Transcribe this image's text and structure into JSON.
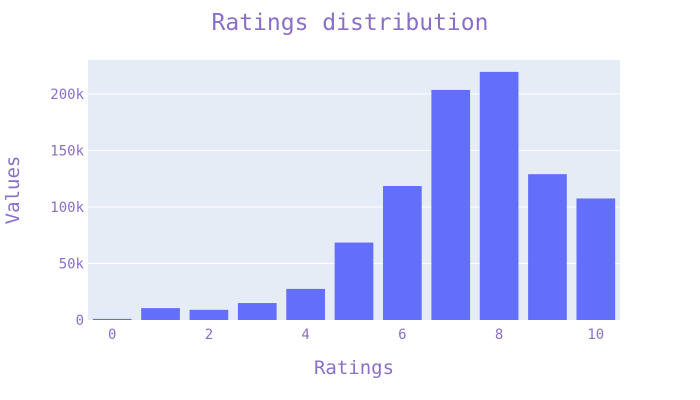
{
  "chart_data": {
    "type": "bar",
    "title": "Ratings distribution",
    "xlabel": "Ratings",
    "ylabel": "Values",
    "x": [
      0,
      1,
      2,
      3,
      4,
      5,
      6,
      7,
      8,
      9,
      10
    ],
    "values": [
      1000,
      10500,
      9000,
      15000,
      27500,
      68500,
      118500,
      203500,
      219500,
      129000,
      107500
    ],
    "xlim": [
      -0.5,
      10.5
    ],
    "ylim": [
      0,
      230000
    ],
    "x_ticks": [
      0,
      2,
      4,
      6,
      8,
      10
    ],
    "x_tick_labels": [
      "0",
      "2",
      "4",
      "6",
      "8",
      "10"
    ],
    "y_ticks": [
      0,
      50000,
      100000,
      150000,
      200000
    ],
    "y_tick_labels": [
      "0",
      "50k",
      "100k",
      "150k",
      "200k"
    ],
    "grid": true,
    "legend": "none",
    "colors": {
      "bar": "#636efa",
      "plot_background": "#e5ecf6",
      "text": "#8a6fc9",
      "grid": "#ffffff"
    }
  }
}
